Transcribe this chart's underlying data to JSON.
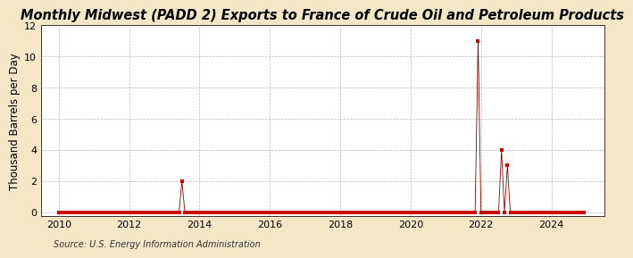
{
  "title": "Monthly Midwest (PADD 2) Exports to France of Crude Oil and Petroleum Products",
  "ylabel": "Thousand Barrels per Day",
  "source": "Source: U.S. Energy Information Administration",
  "background_color": "#f5e6c8",
  "plot_background_color": "#ffffff",
  "marker_color": "#cc0000",
  "line_color": "#8b0000",
  "grid_color": "#999999",
  "xlim_start": 2009.5,
  "xlim_end": 2025.5,
  "ylim_min": -0.25,
  "ylim_max": 12,
  "yticks": [
    0,
    2,
    4,
    6,
    8,
    10,
    12
  ],
  "xticks": [
    2010,
    2012,
    2014,
    2016,
    2018,
    2020,
    2022,
    2024
  ],
  "title_fontsize": 10.5,
  "axis_fontsize": 8.5,
  "tick_fontsize": 8,
  "source_fontsize": 7,
  "data_x": [
    2010.0,
    2010.083,
    2010.167,
    2010.25,
    2010.333,
    2010.417,
    2010.5,
    2010.583,
    2010.667,
    2010.75,
    2010.833,
    2010.917,
    2011.0,
    2011.083,
    2011.167,
    2011.25,
    2011.333,
    2011.417,
    2011.5,
    2011.583,
    2011.667,
    2011.75,
    2011.833,
    2011.917,
    2012.0,
    2012.083,
    2012.167,
    2012.25,
    2012.333,
    2012.417,
    2012.5,
    2012.583,
    2012.667,
    2012.75,
    2012.833,
    2012.917,
    2013.0,
    2013.083,
    2013.167,
    2013.25,
    2013.333,
    2013.417,
    2013.5,
    2013.583,
    2013.667,
    2013.75,
    2013.833,
    2013.917,
    2014.0,
    2014.083,
    2014.167,
    2014.25,
    2014.333,
    2014.417,
    2014.5,
    2014.583,
    2014.667,
    2014.75,
    2014.833,
    2014.917,
    2015.0,
    2015.083,
    2015.167,
    2015.25,
    2015.333,
    2015.417,
    2015.5,
    2015.583,
    2015.667,
    2015.75,
    2015.833,
    2015.917,
    2016.0,
    2016.083,
    2016.167,
    2016.25,
    2016.333,
    2016.417,
    2016.5,
    2016.583,
    2016.667,
    2016.75,
    2016.833,
    2016.917,
    2017.0,
    2017.083,
    2017.167,
    2017.25,
    2017.333,
    2017.417,
    2017.5,
    2017.583,
    2017.667,
    2017.75,
    2017.833,
    2017.917,
    2018.0,
    2018.083,
    2018.167,
    2018.25,
    2018.333,
    2018.417,
    2018.5,
    2018.583,
    2018.667,
    2018.75,
    2018.833,
    2018.917,
    2019.0,
    2019.083,
    2019.167,
    2019.25,
    2019.333,
    2019.417,
    2019.5,
    2019.583,
    2019.667,
    2019.75,
    2019.833,
    2019.917,
    2020.0,
    2020.083,
    2020.167,
    2020.25,
    2020.333,
    2020.417,
    2020.5,
    2020.583,
    2020.667,
    2020.75,
    2020.833,
    2020.917,
    2021.0,
    2021.083,
    2021.167,
    2021.25,
    2021.333,
    2021.417,
    2021.5,
    2021.583,
    2021.667,
    2021.75,
    2021.833,
    2021.917,
    2022.0,
    2022.083,
    2022.167,
    2022.25,
    2022.333,
    2022.417,
    2022.5,
    2022.583,
    2022.667,
    2022.75,
    2022.833,
    2022.917,
    2023.0,
    2023.083,
    2023.167,
    2023.25,
    2023.333,
    2023.417,
    2023.5,
    2023.583,
    2023.667,
    2023.75,
    2023.833,
    2023.917,
    2024.0,
    2024.083,
    2024.167,
    2024.25,
    2024.333,
    2024.417,
    2024.5,
    2024.583,
    2024.667,
    2024.75,
    2024.833,
    2024.917
  ],
  "data_y": [
    0,
    0,
    0,
    0,
    0,
    0,
    0,
    0,
    0,
    0,
    0,
    0,
    0,
    0,
    0,
    0,
    0,
    0,
    0,
    0,
    0,
    0,
    0,
    0,
    0,
    0,
    0,
    0,
    0,
    0,
    0,
    0,
    0,
    0,
    0,
    0,
    0,
    0,
    0,
    0,
    0,
    0,
    2,
    0,
    0,
    0,
    0,
    0,
    0,
    0,
    0,
    0,
    0,
    0,
    0,
    0,
    0,
    0,
    0,
    0,
    0,
    0,
    0,
    0,
    0,
    0,
    0,
    0,
    0,
    0,
    0,
    0,
    0,
    0,
    0,
    0,
    0,
    0,
    0,
    0,
    0,
    0,
    0,
    0,
    0,
    0,
    0,
    0,
    0,
    0,
    0,
    0,
    0,
    0,
    0,
    0,
    0,
    0,
    0,
    0,
    0,
    0,
    0,
    0,
    0,
    0,
    0,
    0,
    0,
    0,
    0,
    0,
    0,
    0,
    0,
    0,
    0,
    0,
    0,
    0,
    0,
    0,
    0,
    0,
    0,
    0,
    0,
    0,
    0,
    0,
    0,
    0,
    0,
    0,
    0,
    0,
    0,
    0,
    0,
    0,
    0,
    0,
    0,
    11,
    0,
    0,
    0,
    0,
    0,
    0,
    0,
    4,
    0,
    3,
    0,
    0,
    0,
    0,
    0,
    0,
    0,
    0,
    0,
    0,
    0,
    0,
    0,
    0,
    0,
    0,
    0,
    0,
    0,
    0,
    0,
    0,
    0,
    0,
    0,
    0
  ]
}
